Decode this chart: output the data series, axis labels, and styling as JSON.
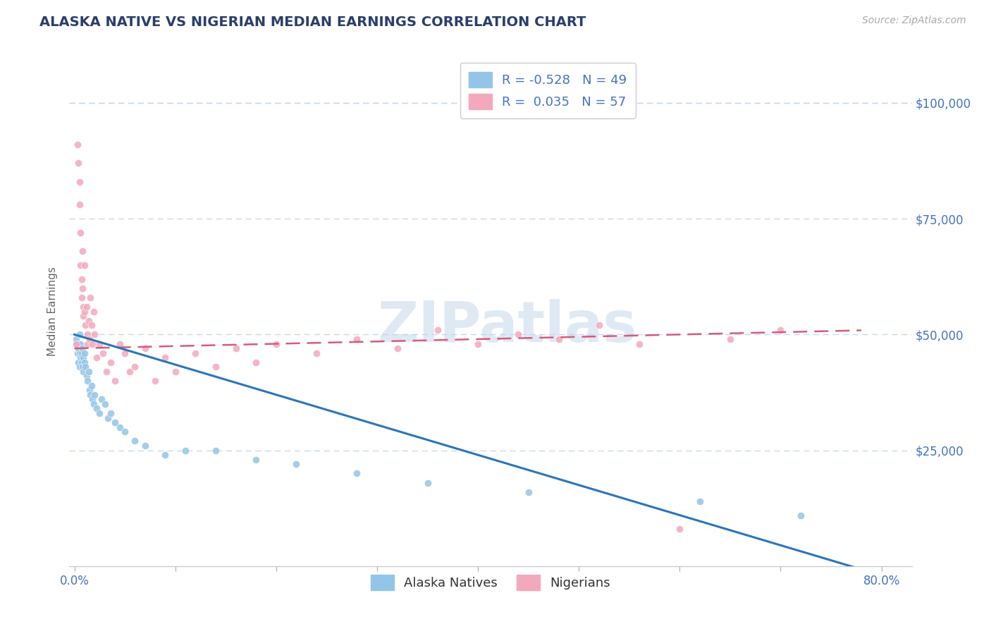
{
  "title": "ALASKA NATIVE VS NIGERIAN MEDIAN EARNINGS CORRELATION CHART",
  "source_text": "Source: ZipAtlas.com",
  "ylabel": "Median Earnings",
  "ytick_labels": [
    "$25,000",
    "$50,000",
    "$75,000",
    "$100,000"
  ],
  "ytick_values": [
    25000,
    50000,
    75000,
    100000
  ],
  "ymin": 0,
  "ymax": 110000,
  "xmin": -0.005,
  "xmax": 0.83,
  "watermark": "ZIPatlas",
  "color_blue": "#93c5e8",
  "color_pink": "#f4a8bb",
  "color_blue_line": "#2976bb",
  "color_pink_line": "#d45c7a",
  "color_axis_label": "#4472c4",
  "color_title": "#2c3e6b",
  "grid_color": "#c8d8f0",
  "alaska_native_x": [
    0.002,
    0.003,
    0.003,
    0.004,
    0.004,
    0.005,
    0.005,
    0.005,
    0.006,
    0.006,
    0.007,
    0.007,
    0.008,
    0.008,
    0.009,
    0.009,
    0.01,
    0.01,
    0.011,
    0.012,
    0.013,
    0.014,
    0.015,
    0.016,
    0.017,
    0.018,
    0.019,
    0.02,
    0.022,
    0.025,
    0.027,
    0.03,
    0.033,
    0.036,
    0.04,
    0.045,
    0.05,
    0.06,
    0.07,
    0.09,
    0.11,
    0.14,
    0.18,
    0.22,
    0.28,
    0.35,
    0.45,
    0.62,
    0.72
  ],
  "alaska_native_y": [
    49000,
    48000,
    46000,
    47000,
    44000,
    50000,
    46000,
    43000,
    48000,
    45000,
    46000,
    44000,
    47000,
    43000,
    45000,
    42000,
    46000,
    44000,
    43000,
    41000,
    40000,
    42000,
    38000,
    37000,
    39000,
    36000,
    35000,
    37000,
    34000,
    33000,
    36000,
    35000,
    32000,
    33000,
    31000,
    30000,
    29000,
    27000,
    26000,
    24000,
    25000,
    25000,
    23000,
    22000,
    20000,
    18000,
    16000,
    14000,
    11000
  ],
  "nigerian_x": [
    0.002,
    0.003,
    0.004,
    0.005,
    0.005,
    0.006,
    0.006,
    0.007,
    0.007,
    0.008,
    0.008,
    0.009,
    0.009,
    0.01,
    0.01,
    0.011,
    0.012,
    0.013,
    0.013,
    0.014,
    0.015,
    0.016,
    0.017,
    0.018,
    0.019,
    0.02,
    0.022,
    0.025,
    0.028,
    0.032,
    0.036,
    0.04,
    0.045,
    0.05,
    0.055,
    0.06,
    0.07,
    0.08,
    0.09,
    0.1,
    0.12,
    0.14,
    0.16,
    0.18,
    0.2,
    0.24,
    0.28,
    0.32,
    0.36,
    0.4,
    0.44,
    0.48,
    0.52,
    0.56,
    0.6,
    0.65,
    0.7
  ],
  "nigerian_y": [
    48000,
    91000,
    87000,
    83000,
    78000,
    72000,
    65000,
    62000,
    58000,
    68000,
    60000,
    56000,
    54000,
    65000,
    55000,
    52000,
    56000,
    50000,
    48000,
    53000,
    49000,
    58000,
    52000,
    48000,
    55000,
    50000,
    45000,
    48000,
    46000,
    42000,
    44000,
    40000,
    48000,
    46000,
    42000,
    43000,
    47000,
    40000,
    45000,
    42000,
    46000,
    43000,
    47000,
    44000,
    48000,
    46000,
    49000,
    47000,
    51000,
    48000,
    50000,
    49000,
    52000,
    48000,
    8000,
    49000,
    51000
  ],
  "legend1_label1": "R = -0.528   N = 49",
  "legend1_label2": "R =  0.035   N = 57",
  "legend2_label1": "Alaska Natives",
  "legend2_label2": "Nigerians",
  "xtick_positions": [
    0.0,
    0.1,
    0.2,
    0.3,
    0.4,
    0.5,
    0.6,
    0.7,
    0.8
  ],
  "xaxis_only_labels": [
    "0.0%",
    "80.0%"
  ]
}
